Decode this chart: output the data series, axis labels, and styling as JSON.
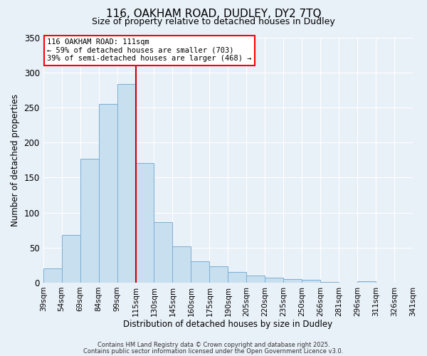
{
  "title": "116, OAKHAM ROAD, DUDLEY, DY2 7TQ",
  "subtitle": "Size of property relative to detached houses in Dudley",
  "xlabel": "Distribution of detached houses by size in Dudley",
  "ylabel": "Number of detached properties",
  "bar_values": [
    20,
    68,
    177,
    255,
    283,
    171,
    86,
    52,
    30,
    23,
    15,
    10,
    7,
    5,
    4,
    1,
    0,
    2,
    0,
    0
  ],
  "bar_labels": [
    "39sqm",
    "54sqm",
    "69sqm",
    "84sqm",
    "99sqm",
    "115sqm",
    "130sqm",
    "145sqm",
    "160sqm",
    "175sqm",
    "190sqm",
    "205sqm",
    "220sqm",
    "235sqm",
    "250sqm",
    "266sqm",
    "281sqm",
    "296sqm",
    "311sqm",
    "326sqm",
    "341sqm"
  ],
  "bar_color": "#c8dff0",
  "bar_edge_color": "#7bafd4",
  "vline_x": 5,
  "vline_color": "#cc0000",
  "ylim": [
    0,
    350
  ],
  "yticks": [
    0,
    50,
    100,
    150,
    200,
    250,
    300,
    350
  ],
  "annotation_title": "116 OAKHAM ROAD: 111sqm",
  "annotation_line1": "← 59% of detached houses are smaller (703)",
  "annotation_line2": "39% of semi-detached houses are larger (468) →",
  "footer1": "Contains HM Land Registry data © Crown copyright and database right 2025.",
  "footer2": "Contains public sector information licensed under the Open Government Licence v3.0.",
  "bg_color": "#e8f0f8",
  "plot_bg_color": "#e8f0f8",
  "grid_color": "#ffffff",
  "title_fontsize": 11,
  "subtitle_fontsize": 9,
  "ylabel_fontsize": 8.5,
  "xlabel_fontsize": 8.5,
  "ytick_fontsize": 8.5,
  "xtick_fontsize": 7.5,
  "footer_fontsize": 6,
  "annot_fontsize": 7.5
}
